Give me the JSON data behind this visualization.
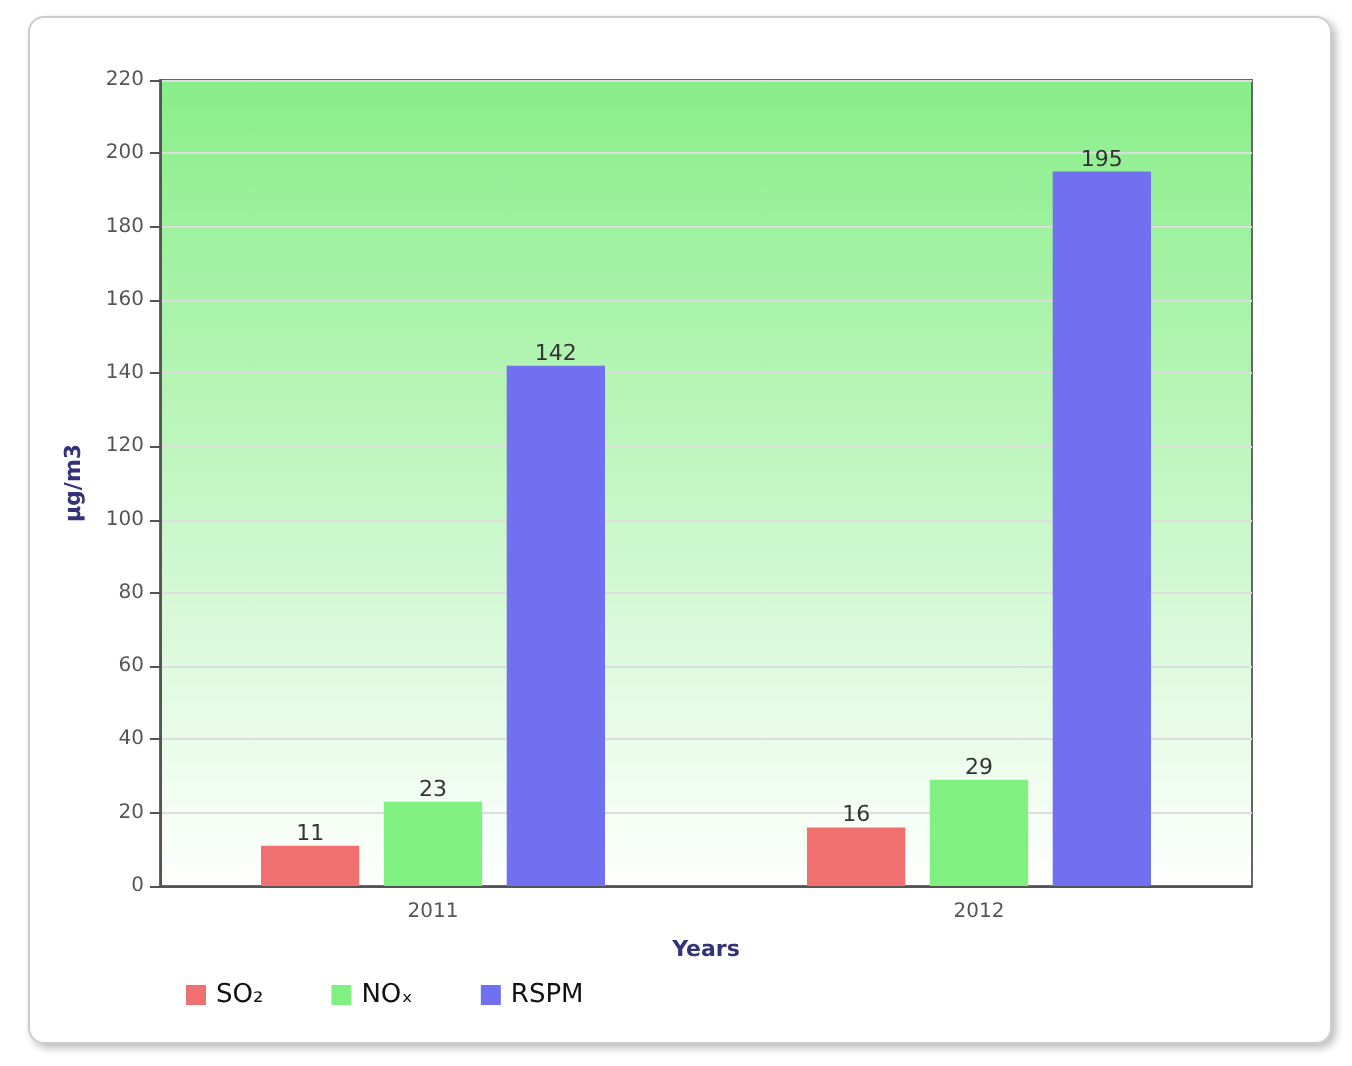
{
  "chart_data": {
    "type": "bar",
    "xlabel": "Years",
    "ylabel": "µg/m3",
    "categories": [
      "2011",
      "2012"
    ],
    "series": [
      {
        "name": "SO₂",
        "color": "#f07070",
        "values": [
          11,
          16
        ]
      },
      {
        "name": "NOₓ",
        "color": "#80f080",
        "values": [
          23,
          29
        ]
      },
      {
        "name": "RSPM",
        "color": "#7070f0",
        "values": [
          142,
          195
        ]
      }
    ],
    "ylim": [
      0,
      220
    ],
    "yticks": [
      0,
      20,
      40,
      60,
      80,
      100,
      120,
      140,
      160,
      180,
      200,
      220
    ],
    "grid": "y",
    "legend": "bottom left",
    "data_labels": true
  }
}
